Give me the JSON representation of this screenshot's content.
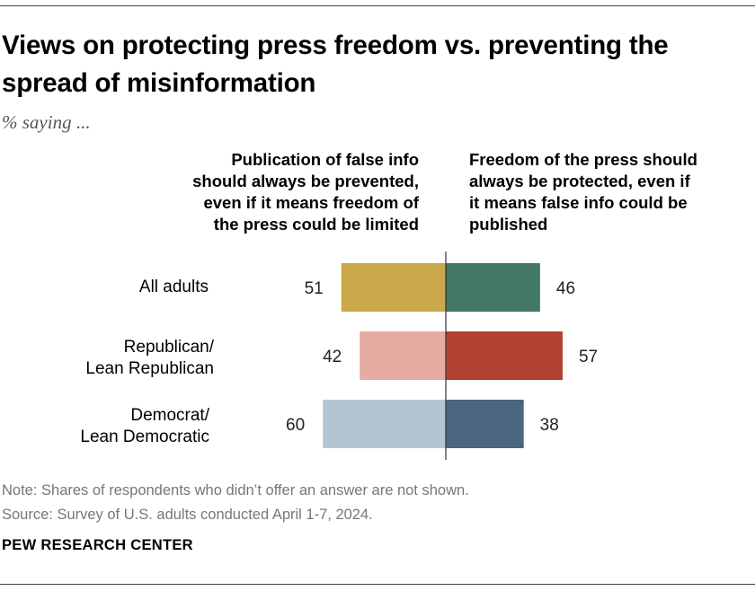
{
  "title": "Views on protecting press freedom vs. preventing the spread of misinformation",
  "subtitle": "% saying ...",
  "chart_data": {
    "type": "bar",
    "orientation": "horizontal-diverging",
    "categories": [
      "All adults",
      "Republican/ Lean Republican",
      "Democrat/ Lean Democratic"
    ],
    "category_lines": [
      [
        "All adults"
      ],
      [
        "Republican/",
        "Lean Republican"
      ],
      [
        "Democrat/",
        "Lean Democratic"
      ]
    ],
    "series": [
      {
        "name": "Publication of false info should always be prevented, even if it means freedom of the press could be limited",
        "header_lines": [
          "Publication of false info",
          "should always be prevented,",
          "even if it means freedom of",
          "the press could be limited"
        ],
        "side": "left",
        "values": [
          51,
          42,
          60
        ],
        "colors": [
          "#cba94a",
          "#e6aba2",
          "#b2c5d5"
        ]
      },
      {
        "name": "Freedom of the press should always be protected, even if it means false info could be published",
        "header_lines": [
          "Freedom of the press should",
          "always be protected, even if",
          "it means false info could be",
          "published"
        ],
        "side": "right",
        "values": [
          46,
          57,
          38
        ],
        "colors": [
          "#437767",
          "#b24230",
          "#4a6681"
        ]
      }
    ],
    "xlim": [
      0,
      60
    ]
  },
  "note": "Note: Shares of respondents who didn’t offer an answer are not shown.",
  "source": "Source: Survey of U.S. adults conducted April 1-7, 2024.",
  "brand": "PEW RESEARCH CENTER"
}
